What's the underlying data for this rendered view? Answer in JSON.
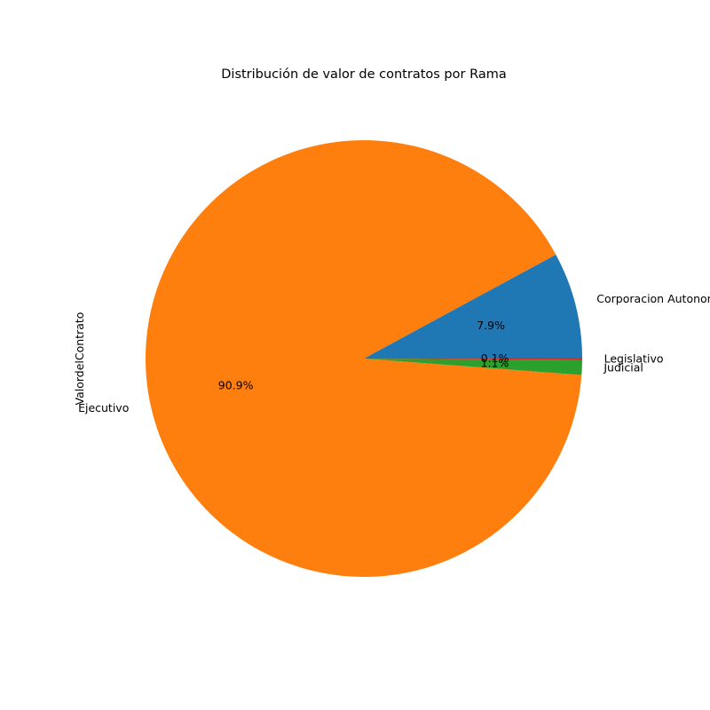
{
  "chart_data": {
    "type": "pie",
    "title": "Distribución de valor de contratos por Rama",
    "ylabel": "ValordelContrato",
    "start_angle_deg": 0,
    "direction": "counterclockwise",
    "slices": [
      {
        "label": "Corporacion Autonoma",
        "percent_label": "7.9%",
        "value": 7.9,
        "color": "#1f77b4"
      },
      {
        "label": "Ejecutivo",
        "percent_label": "90.9%",
        "value": 90.9,
        "color": "#ff7f0e"
      },
      {
        "label": "Judicial",
        "percent_label": "1.1%",
        "value": 1.1,
        "color": "#2ca02c"
      },
      {
        "label": "Legislativo",
        "percent_label": "0.1%",
        "value": 0.1,
        "color": "#d62728"
      }
    ]
  }
}
